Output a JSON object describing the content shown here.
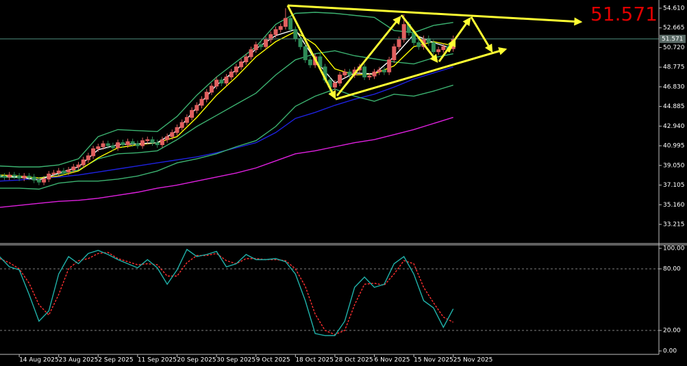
{
  "chart_data": [
    {
      "type": "candlestick",
      "current_price": 51.571,
      "price_line_color": "#4f8f80",
      "up_color": "#e0605f",
      "down_color": "#2e8b57",
      "xlim": [
        0.1,
        133.7
      ],
      "xticks": [
        {
          "value": 4,
          "label": "14 Aug 2025"
        },
        {
          "value": 12,
          "label": "23 Aug 2025"
        },
        {
          "value": 20,
          "label": "2 Sep 2025"
        },
        {
          "value": 28,
          "label": "11 Sep 2025"
        },
        {
          "value": 36,
          "label": "20 Sep 2025"
        },
        {
          "value": 44,
          "label": "30 Sep 2025"
        },
        {
          "value": 52,
          "label": "9 Oct 2025"
        },
        {
          "value": 60,
          "label": "18 Oct 2025"
        },
        {
          "value": 68,
          "label": "28 Oct 2025"
        },
        {
          "value": 76,
          "label": "6 Nov 2025"
        },
        {
          "value": 84,
          "label": "15 Nov 2025"
        },
        {
          "value": 92,
          "label": "25 Nov 2025"
        }
      ],
      "ylim": [
        31.32,
        55.42
      ],
      "yticks": [
        {
          "value": 54.61,
          "label": "54.610"
        },
        52.665,
        {
          "value": 50.72,
          "label": "50.720"
        },
        48.775,
        {
          "value": 46.83,
          "label": "46.830"
        },
        44.885,
        {
          "value": 42.94,
          "label": "42.940"
        },
        40.995,
        {
          "value": 39.05,
          "label": "39.050"
        },
        37.105,
        {
          "value": 35.16,
          "label": "35.160"
        },
        33.215
      ],
      "open": [
        38.1,
        38.0,
        37.9,
        38.1,
        38.0,
        37.8,
        38.0,
        37.9,
        37.6,
        37.4,
        37.7,
        38.2,
        38.3,
        38.5,
        38.4,
        38.6,
        38.9,
        39.1,
        39.6,
        40.0,
        40.7,
        40.9,
        41.2,
        41.0,
        40.8,
        41.3,
        41.1,
        41.4,
        41.2,
        41.0,
        41.5,
        41.6,
        41.3,
        41.1,
        41.6,
        41.9,
        42.3,
        42.8,
        43.3,
        43.8,
        44.5,
        45.0,
        45.6,
        46.3,
        46.9,
        47.5,
        47.2,
        47.8,
        48.3,
        48.8,
        49.3,
        49.8,
        50.5,
        51.0,
        50.8,
        51.5,
        52.0,
        52.5,
        52.8,
        53.6,
        52.5,
        51.6,
        50.8,
        49.5,
        49.0,
        49.8,
        48.8,
        47.5,
        46.8,
        47.2,
        48.0,
        48.3,
        48.0,
        48.5,
        48.8,
        47.8,
        47.9,
        48.3,
        48.5,
        48.3,
        49.5,
        50.8,
        51.5,
        53.0,
        52.2,
        51.2,
        50.8,
        51.6,
        51.2,
        50.3,
        50.5,
        50.8,
        50.6
      ],
      "high": [
        38.4,
        38.3,
        38.4,
        38.4,
        38.3,
        38.3,
        38.3,
        38.2,
        37.9,
        38.0,
        38.5,
        38.6,
        38.8,
        38.8,
        38.9,
        39.2,
        39.4,
        39.9,
        40.3,
        41.0,
        41.2,
        41.5,
        41.5,
        41.3,
        41.6,
        41.6,
        41.7,
        41.7,
        41.5,
        41.8,
        41.9,
        41.9,
        41.6,
        41.9,
        42.2,
        42.6,
        43.1,
        43.6,
        44.1,
        44.8,
        45.3,
        45.9,
        46.6,
        47.2,
        47.8,
        47.8,
        48.1,
        48.6,
        49.1,
        49.6,
        50.1,
        50.8,
        51.3,
        51.3,
        51.8,
        52.3,
        52.8,
        53.1,
        54.6,
        53.9,
        52.8,
        51.9,
        51.1,
        49.8,
        50.1,
        50.1,
        49.1,
        47.8,
        47.5,
        48.3,
        48.6,
        48.6,
        48.8,
        49.1,
        49.1,
        48.2,
        48.6,
        48.8,
        48.8,
        49.8,
        51.1,
        51.8,
        54.0,
        53.3,
        52.5,
        51.5,
        51.9,
        51.9,
        51.5,
        50.8,
        51.1,
        51.1,
        51.9
      ],
      "low": [
        37.7,
        37.6,
        37.6,
        37.7,
        37.5,
        37.5,
        37.6,
        37.3,
        37.1,
        37.1,
        37.4,
        37.9,
        38.0,
        38.1,
        38.1,
        38.3,
        38.6,
        38.8,
        39.3,
        39.7,
        40.4,
        40.6,
        40.7,
        40.5,
        40.5,
        40.8,
        40.8,
        40.9,
        40.7,
        40.7,
        41.2,
        41.0,
        40.8,
        40.8,
        41.3,
        41.6,
        42.0,
        42.5,
        43.0,
        43.5,
        44.2,
        44.7,
        45.3,
        46.0,
        46.6,
        46.9,
        46.9,
        47.5,
        48.0,
        48.5,
        49.0,
        49.5,
        50.2,
        50.5,
        50.5,
        51.2,
        51.7,
        52.2,
        52.5,
        52.2,
        51.3,
        50.5,
        49.2,
        48.7,
        48.7,
        48.5,
        47.2,
        46.0,
        46.5,
        46.9,
        47.7,
        47.7,
        47.7,
        48.2,
        47.5,
        47.5,
        47.6,
        48.0,
        48.0,
        48.0,
        49.2,
        50.5,
        51.2,
        51.9,
        50.9,
        50.5,
        50.5,
        50.9,
        50.0,
        50.0,
        50.2,
        50.3,
        50.3
      ],
      "close": [
        38.0,
        37.9,
        38.1,
        38.0,
        37.8,
        38.0,
        37.9,
        37.6,
        37.4,
        37.7,
        38.2,
        38.3,
        38.5,
        38.4,
        38.6,
        38.9,
        39.1,
        39.6,
        40.0,
        40.7,
        40.9,
        41.2,
        41.0,
        40.8,
        41.3,
        41.1,
        41.4,
        41.2,
        41.0,
        41.5,
        41.6,
        41.3,
        41.1,
        41.6,
        41.9,
        42.3,
        42.8,
        43.3,
        43.8,
        44.5,
        45.0,
        45.6,
        46.3,
        46.9,
        47.5,
        47.2,
        47.8,
        48.3,
        48.8,
        49.3,
        49.8,
        50.5,
        51.0,
        50.8,
        51.5,
        52.0,
        52.5,
        52.8,
        53.6,
        52.5,
        51.6,
        50.8,
        49.5,
        49.0,
        49.8,
        48.8,
        47.5,
        46.8,
        47.2,
        48.0,
        48.3,
        48.0,
        48.5,
        48.8,
        47.8,
        47.9,
        48.3,
        48.5,
        48.3,
        49.5,
        50.8,
        51.5,
        53.0,
        52.2,
        51.2,
        50.8,
        51.6,
        51.2,
        50.3,
        50.5,
        50.8,
        50.6,
        51.571
      ],
      "line_x": [
        0,
        4,
        8,
        12,
        16,
        20,
        24,
        28,
        32,
        36,
        40,
        44,
        48,
        52,
        56,
        60,
        64,
        68,
        72,
        76,
        80,
        84,
        88,
        92
      ],
      "series": [
        {
          "color": "#e020e0",
          "values": [
            34.9,
            35.1,
            35.3,
            35.5,
            35.6,
            35.8,
            36.1,
            36.4,
            36.8,
            37.1,
            37.5,
            37.9,
            38.3,
            38.8,
            39.5,
            40.2,
            40.5,
            40.9,
            41.3,
            41.6,
            42.1,
            42.6,
            43.2,
            43.8
          ]
        },
        {
          "color": "#1e22e0",
          "values": [
            37.5,
            37.6,
            37.8,
            37.9,
            38.1,
            38.4,
            38.7,
            39.0,
            39.3,
            39.6,
            39.9,
            40.3,
            40.8,
            41.3,
            42.3,
            43.7,
            44.3,
            45.0,
            45.6,
            46.1,
            46.8,
            47.6,
            48.2,
            48.8
          ]
        },
        {
          "color": "#3cb371",
          "values": [
            39.0,
            38.9,
            38.9,
            39.1,
            39.7,
            41.9,
            42.6,
            42.5,
            42.4,
            43.9,
            46.0,
            47.8,
            49.3,
            50.8,
            53.0,
            54.1,
            54.2,
            54.1,
            53.9,
            53.7,
            52.4,
            52.2,
            52.9,
            53.2
          ]
        },
        {
          "color": "#3cb371",
          "values": [
            37.9,
            37.85,
            37.8,
            38.2,
            38.6,
            39.7,
            40.2,
            40.3,
            40.5,
            41.6,
            42.9,
            44.0,
            45.1,
            46.2,
            48.0,
            49.5,
            50.1,
            50.4,
            49.9,
            49.6,
            49.3,
            49.1,
            49.7,
            50.1
          ]
        },
        {
          "color": "#3cb371",
          "values": [
            36.8,
            36.8,
            36.7,
            37.3,
            37.5,
            37.5,
            37.7,
            38.0,
            38.5,
            39.3,
            39.7,
            40.2,
            40.9,
            41.5,
            42.9,
            44.9,
            45.9,
            46.6,
            45.9,
            45.4,
            46.1,
            45.9,
            46.4,
            47.0
          ]
        },
        {
          "color": "#ffff00",
          "values": [
            38.1,
            38.0,
            37.8,
            38.0,
            38.5,
            39.8,
            40.8,
            41.1,
            41.3,
            41.9,
            43.8,
            46.0,
            47.8,
            49.8,
            51.3,
            52.3,
            51.0,
            48.6,
            48.0,
            48.1,
            48.9,
            50.8,
            51.3,
            50.9
          ]
        },
        {
          "color": "#ffffff",
          "values": [
            38.0,
            37.9,
            37.6,
            38.3,
            38.9,
            40.6,
            41.1,
            41.2,
            41.3,
            42.5,
            44.8,
            47.0,
            48.5,
            50.6,
            51.9,
            52.5,
            49.5,
            47.2,
            48.2,
            48.1,
            49.8,
            52.0,
            51.2,
            50.6
          ]
        }
      ]
    },
    {
      "type": "line",
      "ylim": [
        -3.33,
        103.33
      ],
      "yticks": [
        {
          "value": 100,
          "label": "100.00"
        },
        {
          "value": 80,
          "label": "80.00"
        },
        {
          "value": 20,
          "label": "20.00"
        },
        {
          "value": 0,
          "label": "0.00"
        }
      ],
      "levels": [
        80,
        20
      ],
      "line_x": [
        0,
        2,
        4,
        6,
        8,
        10,
        12,
        14,
        16,
        18,
        20,
        22,
        24,
        26,
        28,
        30,
        32,
        34,
        36,
        38,
        40,
        42,
        44,
        46,
        48,
        50,
        52,
        54,
        56,
        58,
        60,
        62,
        64,
        66,
        68,
        70,
        72,
        74,
        76,
        78,
        80,
        82,
        84,
        86,
        88,
        90,
        92
      ],
      "series": [
        {
          "color": "#ff3030",
          "style": "dashed",
          "values": [
            90,
            86,
            80,
            66,
            45,
            35,
            55,
            80,
            88,
            90,
            95,
            96,
            90,
            87,
            84,
            85,
            84,
            73,
            73,
            86,
            93,
            93,
            95,
            88,
            85,
            90,
            90,
            89,
            89,
            88,
            80,
            63,
            36,
            20,
            16,
            20,
            45,
            65,
            66,
            64,
            75,
            88,
            85,
            62,
            47,
            33,
            28
          ]
        },
        {
          "color": "#20b2aa",
          "values": [
            92,
            82,
            79,
            55,
            29,
            39,
            75,
            92,
            85,
            95,
            98,
            94,
            89,
            85,
            81,
            89,
            81,
            65,
            79,
            99,
            92,
            94,
            97,
            82,
            85,
            94,
            89,
            89,
            90,
            87,
            75,
            49,
            17,
            15,
            15,
            29,
            62,
            72,
            62,
            65,
            85,
            92,
            75,
            49,
            42,
            23,
            41
          ]
        }
      ]
    }
  ]
}
